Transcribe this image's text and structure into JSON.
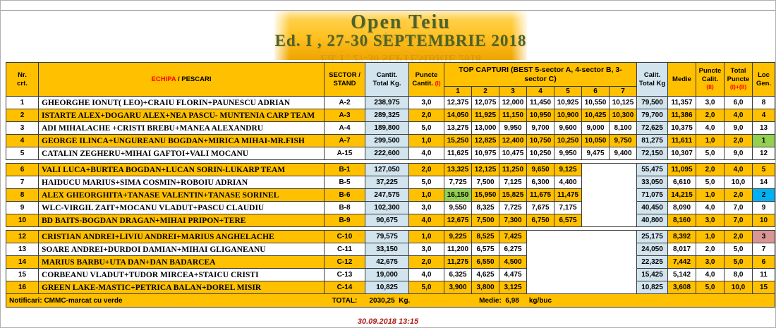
{
  "title": {
    "line1": "Open Teiu",
    "line2": "Ed. I , 27-30 SEPTEMBRIE 2018"
  },
  "table": {
    "header": {
      "nr": "Nr.\ncrt.",
      "echipa_red": "ECHIPA",
      "echipa_rest": " / PESCARI",
      "sector": "SECTOR /\nSTAND",
      "cantit": "Cantit.\nTotal Kg.",
      "puncte_cantit_l1": "Puncte",
      "puncte_cantit_l2": "Cantit.",
      "puncte_cantit_mark": "(I)",
      "top_capturi": "TOP CAPTURI (BEST 5-sector A, 4-sector B, 3-sector C)",
      "capture_cols": [
        "1",
        "2",
        "3",
        "4",
        "5",
        "6",
        "7"
      ],
      "calit": "Calit.\nTotal Kg",
      "medie": "Medie",
      "puncte_calit_l1": "Puncte",
      "puncte_calit_l2": "Calit.",
      "puncte_calit_mark": "(II)",
      "total_puncte_l1": "Total",
      "total_puncte_l2": "Puncte",
      "total_puncte_mark": "(I)+(II)",
      "loc": "Loc\nGen."
    },
    "rows": [
      {
        "nr": "1",
        "team": "GHEORGHE IONUT( LEO)+CRAIU FLORIN+PAUNESCU ADRIAN",
        "stand": "A-2",
        "cantit": "238,975",
        "pc": "3,0",
        "c": [
          "12,375",
          "12,075",
          "12,000",
          "11,450",
          "10,925",
          "10,550",
          "10,125"
        ],
        "calit": "79,500",
        "medie": "11,357",
        "pq": "3,0",
        "tp": "6,0",
        "loc": "8",
        "highlight": false
      },
      {
        "nr": "2",
        "team": "ISTARTE ALEX+DOGARU ALEX+NEA PASCU- MUNTENIA CARP TEAM",
        "stand": "A-3",
        "cantit": "289,325",
        "pc": "2,0",
        "c": [
          "14,050",
          "11,925",
          "11,150",
          "10,950",
          "10,900",
          "10,425",
          "10,300"
        ],
        "calit": "79,700",
        "medie": "11,386",
        "pq": "2,0",
        "tp": "4,0",
        "loc": "4",
        "highlight": true
      },
      {
        "nr": "3",
        "team": "ADI MIHALACHE +CRISTI BREBU+MANEA ALEXANDRU",
        "stand": "A-4",
        "cantit": "189,800",
        "pc": "5,0",
        "c": [
          "13,275",
          "13,000",
          "9,950",
          "9,700",
          "9,600",
          "9,000",
          "8,100"
        ],
        "calit": "72,625",
        "medie": "10,375",
        "pq": "4,0",
        "tp": "9,0",
        "loc": "13",
        "highlight": false
      },
      {
        "nr": "4",
        "team": "GEORGE ILINCA+UNGUREANU BOGDAN+MIRICA MIHAI-MR.FISH",
        "stand": "A-7",
        "cantit": "299,500",
        "pc": "1,0",
        "c": [
          "15,250",
          "12,825",
          "12,400",
          "10,750",
          "10,250",
          "10,050",
          "9,750"
        ],
        "calit": "81,275",
        "medie": "11,611",
        "pq": "1,0",
        "tp": "2,0",
        "loc": "1",
        "highlight": true,
        "loc_color": "green"
      },
      {
        "nr": "5",
        "team": "CATALIN ZEGHERU+MIHAI GAFTOI+VALI MOCANU",
        "stand": "A-15",
        "cantit": "222,600",
        "pc": "4,0",
        "c": [
          "11,625",
          "10,975",
          "10,475",
          "10,250",
          "9,950",
          "9,475",
          "9,400"
        ],
        "calit": "72,150",
        "medie": "10,307",
        "pq": "5,0",
        "tp": "9,0",
        "loc": "12",
        "highlight": false
      },
      {
        "nr": "6",
        "team": "VALI LUCA+BURTEA BOGDAN+LUCAN SORIN-LUKARP TEAM",
        "stand": "B-1",
        "cantit": "127,050",
        "pc": "2,0",
        "c": [
          "13,325",
          "12,125",
          "11,250",
          "9,650",
          "9,125"
        ],
        "calit": "55,475",
        "medie": "11,095",
        "pq": "2,0",
        "tp": "4,0",
        "loc": "5",
        "highlight": true
      },
      {
        "nr": "7",
        "team": "HAIDUCU MARIUS+SIMA COSMIN+ROBOIU ADRIAN",
        "stand": "B-5",
        "cantit": "37,225",
        "pc": "5,0",
        "c": [
          "7,725",
          "7,500",
          "7,125",
          "6,300",
          "4,400"
        ],
        "calit": "33,050",
        "medie": "6,610",
        "pq": "5,0",
        "tp": "10,0",
        "loc": "14",
        "highlight": false
      },
      {
        "nr": "8",
        "team": "ALEX GHEORGHITA+TANASE VALENTIN+TANASE SORINEL",
        "stand": "B-6",
        "cantit": "247,575",
        "pc": "1,0",
        "c": [
          "16,150",
          "15,950",
          "15,825",
          "11,675",
          "11,475"
        ],
        "green_capture_index": 0,
        "calit": "71,075",
        "medie": "14,215",
        "pq": "1,0",
        "tp": "2,0",
        "loc": "2",
        "highlight": true,
        "loc_color": "blue"
      },
      {
        "nr": "9",
        "team": "WLC-VIRGIL ZAIT+MOCANU VLADUT+PASCU CLAUDIU",
        "stand": "B-8",
        "cantit": "102,300",
        "pc": "3,0",
        "c": [
          "9,550",
          "8,325",
          "7,725",
          "7,675",
          "7,175"
        ],
        "calit": "40,450",
        "medie": "8,090",
        "pq": "4,0",
        "tp": "7,0",
        "loc": "9",
        "highlight": false
      },
      {
        "nr": "10",
        "team": "BD BAITS-BOGDAN DRAGAN+MIHAI PRIPON+TERE",
        "stand": "B-9",
        "cantit": "90,675",
        "pc": "4,0",
        "c": [
          "12,675",
          "7,500",
          "7,300",
          "6,750",
          "6,575"
        ],
        "calit": "40,800",
        "medie": "8,160",
        "pq": "3,0",
        "tp": "7,0",
        "loc": "10",
        "highlight": true
      },
      {
        "nr": "12",
        "team": "CRISTIAN ANDREI+LIVIU ANDREI+MARIUS ANGHELACHE",
        "stand": "C-10",
        "cantit": "79,575",
        "pc": "1,0",
        "c": [
          "9,225",
          "8,525",
          "7,425"
        ],
        "calit": "25,175",
        "medie": "8,392",
        "pq": "1,0",
        "tp": "2,0",
        "loc": "3",
        "highlight": true,
        "loc_color": "pink"
      },
      {
        "nr": "13",
        "team": "SOARE ANDREI+DURDOI DAMIAN+MIHAI GLIGANEANU",
        "stand": "C-11",
        "cantit": "33,150",
        "pc": "3,0",
        "c": [
          "11,200",
          "6,575",
          "6,275"
        ],
        "calit": "24,050",
        "medie": "8,017",
        "pq": "2,0",
        "tp": "5,0",
        "loc": "7",
        "highlight": false
      },
      {
        "nr": "14",
        "team": "MARIUS BARBU+UTA DAN+DAN BADARCEA",
        "stand": "C-12",
        "cantit": "42,675",
        "pc": "2,0",
        "c": [
          "11,275",
          "6,550",
          "4,500"
        ],
        "calit": "22,325",
        "medie": "7,442",
        "pq": "3,0",
        "tp": "5,0",
        "loc": "6",
        "highlight": true
      },
      {
        "nr": "15",
        "team": "CORBEANU VLADUT+TUDOR MIRCEA+STAICU CRISTI",
        "stand": "C-13",
        "cantit": "19,000",
        "pc": "4,0",
        "c": [
          "6,325",
          "4,625",
          "4,475"
        ],
        "calit": "15,425",
        "medie": "5,142",
        "pq": "4,0",
        "tp": "8,0",
        "loc": "11",
        "highlight": false
      },
      {
        "nr": "16",
        "team": "GREEN LAKE-MASTIC+PETRICA BALAN+DOREL MISIR",
        "stand": "C-14",
        "cantit": "10,825",
        "pc": "5,0",
        "c": [
          "3,900",
          "3,800",
          "3,125"
        ],
        "calit": "10,825",
        "medie": "3,608",
        "pq": "5,0",
        "tp": "10,0",
        "loc": "15",
        "highlight": true
      }
    ],
    "footer": {
      "notificari": "Notificari: CMMC-marcat cu verde",
      "total_label": "TOTAL:",
      "total_value": "2030,25",
      "total_unit": "Kg.",
      "medie_label": "Medie:",
      "medie_value": "6,98",
      "medie_unit": "kg/buc"
    }
  },
  "date_stamp": "30.09.2018 13:15",
  "colors": {
    "orange": "#FFC000",
    "light_blue": "#D2E4EE",
    "green_marker": "#92D050",
    "blue_marker": "#00B0F0",
    "pink_marker": "#D99594",
    "red_accent": "#FF0000",
    "title_green": "#4F6228",
    "date_red": "#B02020"
  }
}
